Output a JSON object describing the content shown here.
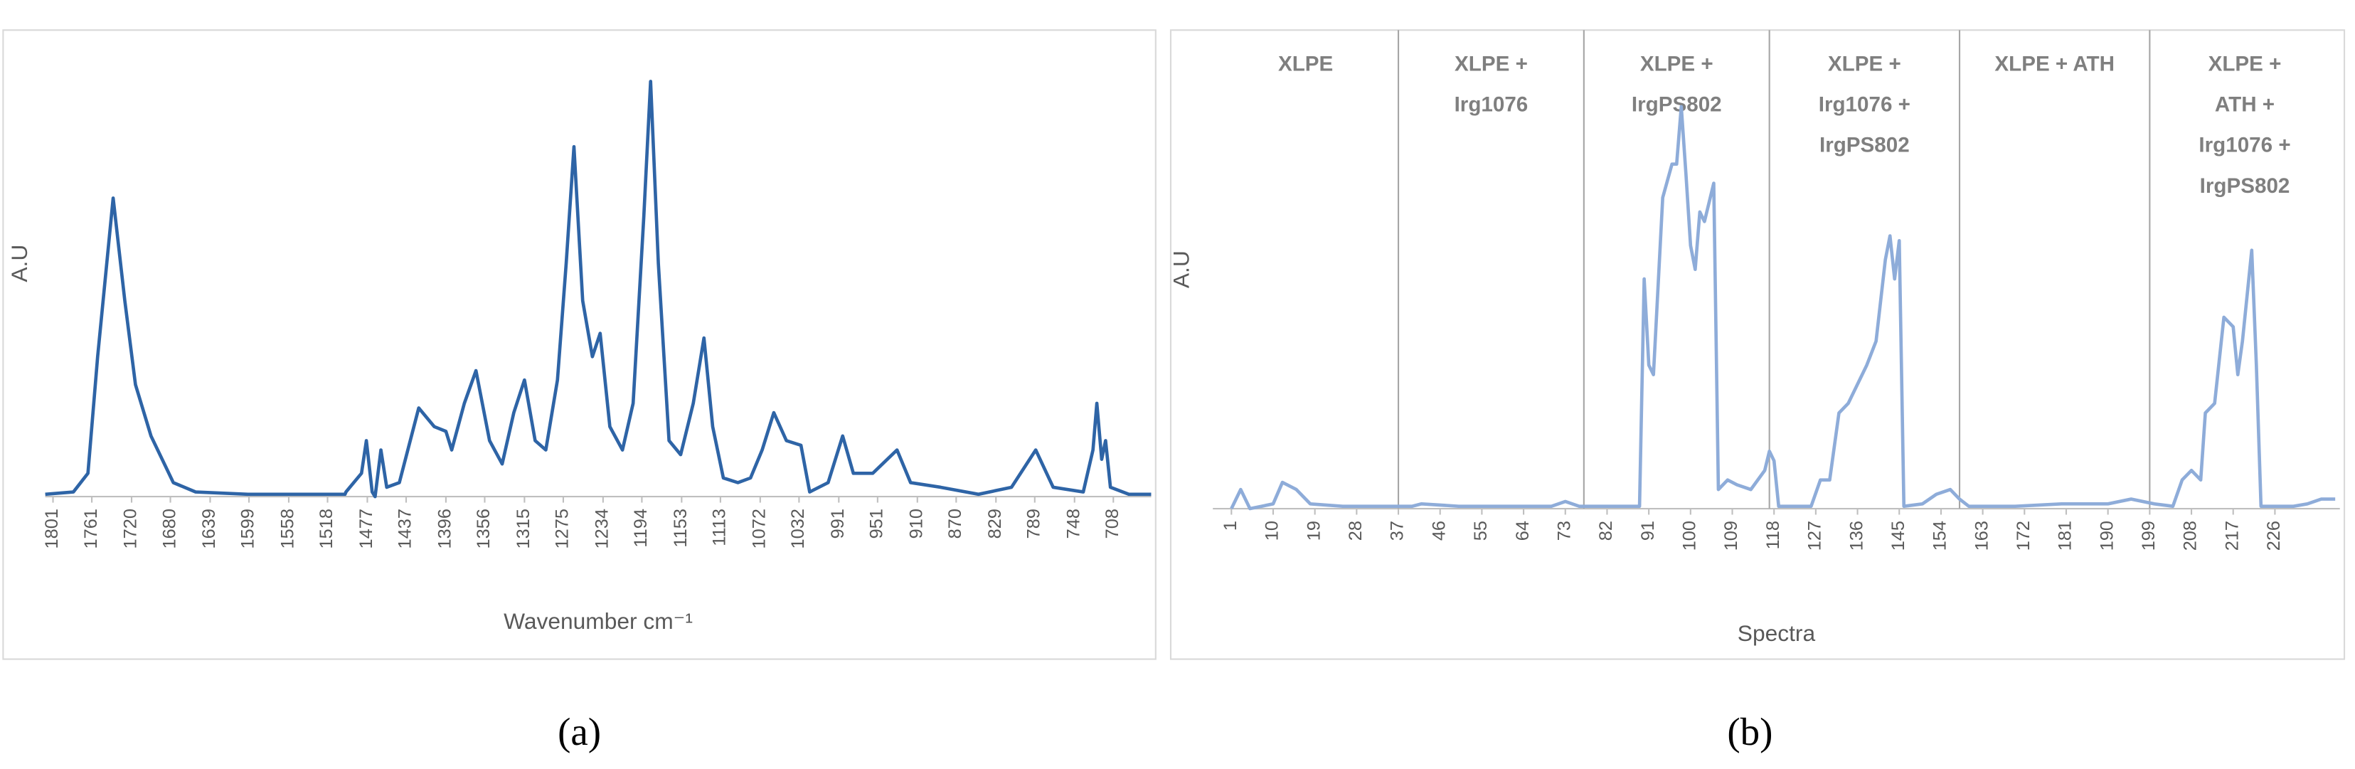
{
  "chart_data": [
    {
      "type": "line",
      "caption": "(a)",
      "xlabel": "Wavenumber cm⁻¹",
      "ylabel": "A.U",
      "color": "#2e64a6",
      "xlim": [
        1809,
        669
      ],
      "ylim": [
        0,
        1
      ],
      "xticks": [
        1801,
        1761,
        1720,
        1680,
        1639,
        1599,
        1558,
        1518,
        1477,
        1437,
        1396,
        1356,
        1315,
        1275,
        1234,
        1194,
        1153,
        1113,
        1072,
        1032,
        991,
        951,
        910,
        870,
        829,
        789,
        748,
        708
      ],
      "x": [
        1809,
        1780,
        1765,
        1755,
        1739,
        1727,
        1716,
        1700,
        1677,
        1654,
        1600,
        1500,
        1499,
        1483,
        1478,
        1472,
        1469,
        1463,
        1457,
        1444,
        1424,
        1408,
        1396,
        1390,
        1377,
        1365,
        1351,
        1338,
        1326,
        1315,
        1304,
        1293,
        1281,
        1272,
        1264,
        1255,
        1245,
        1237,
        1227,
        1214,
        1203,
        1192,
        1185,
        1177,
        1166,
        1154,
        1141,
        1130,
        1121,
        1110,
        1095,
        1082,
        1070,
        1058,
        1045,
        1030,
        1021,
        1002,
        987,
        976,
        956,
        931,
        917,
        886,
        847,
        813,
        788,
        770,
        739,
        729,
        725,
        720,
        716,
        711,
        692,
        669
      ],
      "values": [
        0.005,
        0.01,
        0.05,
        0.3,
        0.64,
        0.42,
        0.24,
        0.13,
        0.03,
        0.01,
        0.005,
        0.005,
        0.01,
        0.05,
        0.12,
        0.01,
        0.0,
        0.1,
        0.02,
        0.03,
        0.19,
        0.15,
        0.14,
        0.1,
        0.2,
        0.27,
        0.12,
        0.07,
        0.18,
        0.25,
        0.12,
        0.1,
        0.25,
        0.5,
        0.75,
        0.42,
        0.3,
        0.35,
        0.15,
        0.1,
        0.2,
        0.6,
        0.89,
        0.5,
        0.12,
        0.09,
        0.2,
        0.34,
        0.15,
        0.04,
        0.03,
        0.04,
        0.1,
        0.18,
        0.12,
        0.11,
        0.01,
        0.03,
        0.13,
        0.05,
        0.05,
        0.1,
        0.03,
        0.02,
        0.005,
        0.02,
        0.1,
        0.02,
        0.01,
        0.1,
        0.2,
        0.08,
        0.12,
        0.02,
        0.005,
        0.005
      ]
    },
    {
      "type": "line",
      "caption": "(b)",
      "xlabel": "Spectra",
      "ylabel": "A.U",
      "color": "#8eacd9",
      "xlim": [
        -3,
        240
      ],
      "ylim": [
        0,
        1
      ],
      "xticks": [
        1,
        10,
        19,
        28,
        37,
        46,
        55,
        64,
        73,
        82,
        91,
        100,
        109,
        118,
        127,
        136,
        145,
        154,
        163,
        172,
        181,
        190,
        199,
        208,
        217,
        226
      ],
      "dividers": [
        37,
        77,
        117,
        158,
        199
      ],
      "sections": [
        [
          "XLPE"
        ],
        [
          "XLPE +",
          "Irg1076"
        ],
        [
          "XLPE +",
          "IrgPS802"
        ],
        [
          "XLPE +",
          "Irg1076 +",
          "IrgPS802"
        ],
        [
          "XLPE + ATH"
        ],
        [
          "XLPE +",
          "ATH +",
          "Irg1076 +",
          "IrgPS802"
        ]
      ],
      "x": [
        1,
        3,
        5,
        10,
        12,
        15,
        18,
        25,
        40,
        42,
        50,
        70,
        73,
        76,
        84,
        89,
        90,
        91,
        92,
        94,
        96,
        97,
        98,
        99,
        100,
        101,
        102,
        103,
        105,
        106,
        108,
        110,
        113,
        116,
        117,
        118,
        119,
        126,
        128,
        130,
        132,
        134,
        136,
        138,
        140,
        142,
        143,
        144,
        145,
        146,
        150,
        153,
        156,
        158,
        160,
        170,
        180,
        190,
        195,
        200,
        204,
        206,
        208,
        210,
        211,
        213,
        215,
        217,
        218,
        219,
        221,
        222,
        223,
        230,
        233,
        236,
        239
      ],
      "values": [
        0.0,
        0.04,
        0.0,
        0.01,
        0.055,
        0.04,
        0.01,
        0.005,
        0.005,
        0.01,
        0.005,
        0.005,
        0.015,
        0.005,
        0.005,
        0.005,
        0.48,
        0.3,
        0.28,
        0.65,
        0.72,
        0.72,
        0.84,
        0.7,
        0.55,
        0.5,
        0.62,
        0.6,
        0.68,
        0.04,
        0.06,
        0.05,
        0.04,
        0.08,
        0.12,
        0.1,
        0.005,
        0.005,
        0.06,
        0.06,
        0.2,
        0.22,
        0.26,
        0.3,
        0.35,
        0.52,
        0.57,
        0.48,
        0.56,
        0.005,
        0.01,
        0.03,
        0.04,
        0.02,
        0.005,
        0.005,
        0.01,
        0.01,
        0.02,
        0.01,
        0.005,
        0.06,
        0.08,
        0.06,
        0.2,
        0.22,
        0.4,
        0.38,
        0.28,
        0.35,
        0.54,
        0.3,
        0.005,
        0.005,
        0.01,
        0.02,
        0.02
      ]
    }
  ]
}
